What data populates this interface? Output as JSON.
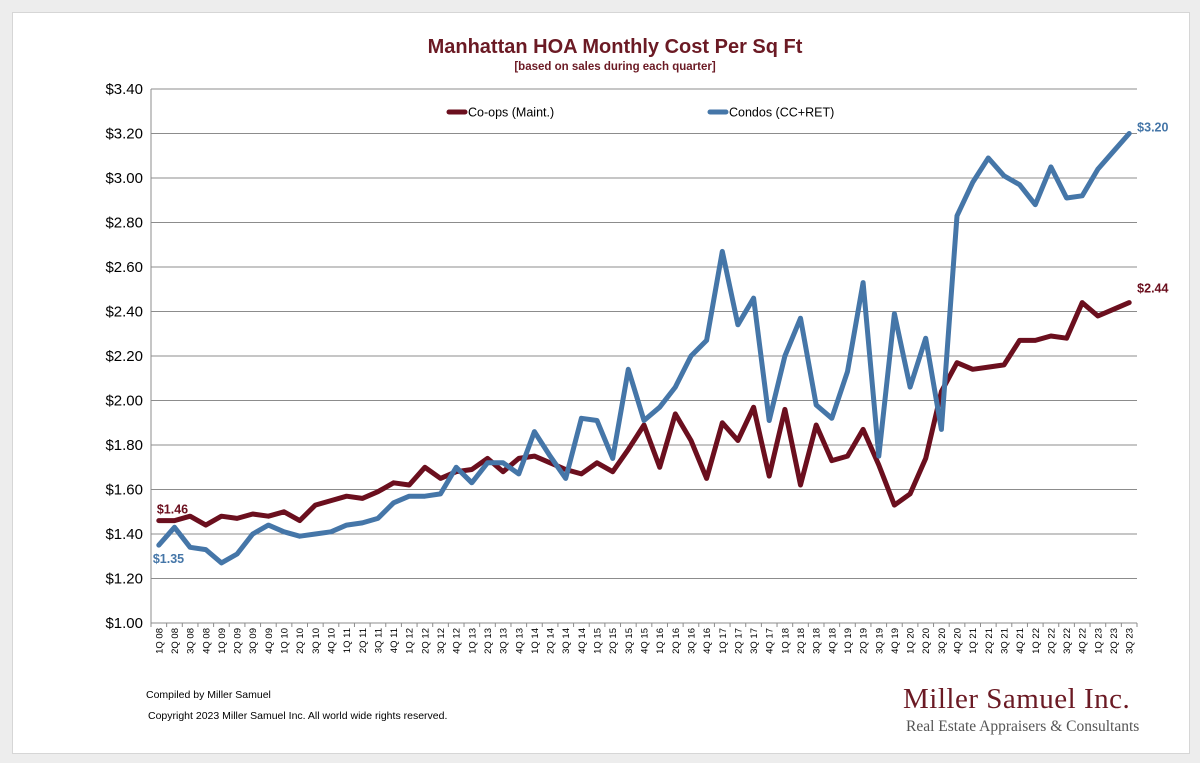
{
  "footer": {
    "compiled": "Compiled by Miller Samuel",
    "copyright": "Copyright 2023 Miller Samuel Inc.  All world wide rights reserved."
  },
  "logo": {
    "name": "Miller Samuel Inc.",
    "tagline": "Real Estate Appraisers & Consultants"
  },
  "chart_data": {
    "type": "line",
    "title": "Manhattan HOA Monthly Cost Per Sq Ft",
    "subtitle": "[based on sales during each quarter]",
    "xlabel": "",
    "ylabel": "",
    "ylim": [
      1.0,
      3.4
    ],
    "ytick_step": 0.2,
    "ytick_format": "$0.00",
    "grid": "horizontal",
    "legend": "top-center",
    "categories": [
      "1Q 08",
      "2Q 08",
      "3Q 08",
      "4Q 08",
      "1Q 09",
      "2Q 09",
      "3Q 09",
      "4Q 09",
      "1Q 10",
      "2Q 10",
      "3Q 10",
      "4Q 10",
      "1Q 11",
      "2Q 11",
      "3Q 11",
      "4Q 11",
      "1Q 12",
      "2Q 12",
      "3Q 12",
      "4Q 12",
      "1Q 13",
      "2Q 13",
      "3Q 13",
      "4Q 13",
      "1Q 14",
      "2Q 14",
      "3Q 14",
      "4Q 14",
      "1Q 15",
      "2Q 15",
      "3Q 15",
      "4Q 15",
      "1Q 16",
      "2Q 16",
      "3Q 16",
      "4Q 16",
      "1Q 17",
      "2Q 17",
      "3Q 17",
      "4Q 17",
      "1Q 18",
      "2Q 18",
      "3Q 18",
      "4Q 18",
      "1Q 19",
      "2Q 19",
      "3Q 19",
      "4Q 19",
      "1Q 20",
      "2Q 20",
      "3Q 20",
      "4Q 20",
      "1Q 21",
      "2Q 21",
      "3Q 21",
      "4Q 21",
      "1Q 22",
      "2Q 22",
      "3Q 22",
      "4Q 22",
      "1Q 23",
      "2Q 23",
      "3Q 23"
    ],
    "series": [
      {
        "name": "Co-ops (Maint.)",
        "color": "#6b0f1e",
        "values": [
          1.46,
          1.46,
          1.48,
          1.44,
          1.48,
          1.47,
          1.49,
          1.48,
          1.5,
          1.46,
          1.53,
          1.55,
          1.57,
          1.56,
          1.59,
          1.63,
          1.62,
          1.7,
          1.65,
          1.68,
          1.69,
          1.74,
          1.68,
          1.74,
          1.75,
          1.72,
          1.69,
          1.67,
          1.72,
          1.68,
          1.78,
          1.89,
          1.7,
          1.94,
          1.82,
          1.65,
          1.9,
          1.82,
          1.97,
          1.66,
          1.96,
          1.62,
          1.89,
          1.73,
          1.75,
          1.87,
          1.71,
          1.53,
          1.58,
          1.74,
          2.04,
          2.17,
          2.14,
          2.15,
          2.16,
          2.27,
          2.27,
          2.29,
          2.28,
          2.44,
          2.38,
          2.41,
          2.44
        ],
        "first_label": "$1.46",
        "last_label": "$2.44"
      },
      {
        "name": "Condos (CC+RET)",
        "color": "#4576a8",
        "values": [
          1.35,
          1.43,
          1.34,
          1.33,
          1.27,
          1.31,
          1.4,
          1.44,
          1.41,
          1.39,
          1.4,
          1.41,
          1.44,
          1.45,
          1.47,
          1.54,
          1.57,
          1.57,
          1.58,
          1.7,
          1.63,
          1.72,
          1.72,
          1.67,
          1.86,
          1.75,
          1.65,
          1.92,
          1.91,
          1.74,
          2.14,
          1.91,
          1.97,
          2.06,
          2.2,
          2.27,
          2.67,
          2.34,
          2.46,
          1.91,
          2.2,
          2.37,
          1.98,
          1.92,
          2.13,
          2.53,
          1.75,
          2.39,
          2.06,
          2.28,
          1.87,
          2.83,
          2.98,
          3.09,
          3.01,
          2.97,
          2.88,
          3.05,
          2.91,
          2.92,
          3.04,
          3.12,
          3.2
        ],
        "first_label": "$1.35",
        "last_label": "$3.20"
      }
    ]
  }
}
